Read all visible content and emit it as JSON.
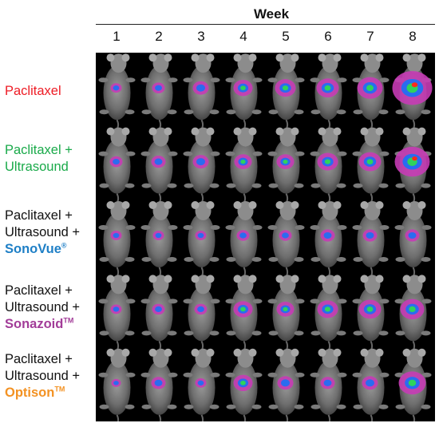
{
  "header": {
    "title": "Week",
    "weeks": [
      "1",
      "2",
      "3",
      "4",
      "5",
      "6",
      "7",
      "8"
    ]
  },
  "rows": [
    {
      "lines": [
        "Paclitaxel"
      ],
      "color": "#ee1c25",
      "accent": "",
      "mark": ""
    },
    {
      "lines": [
        "Paclitaxel +",
        "Ultrasound"
      ],
      "color": "#1aaa4a",
      "accent": "",
      "mark": ""
    },
    {
      "lines": [
        "Paclitaxel +",
        "Ultrasound +"
      ],
      "color": "#111111",
      "accent": "SonoVue",
      "mark": "®",
      "accent_color": "#1e7fc6"
    },
    {
      "lines": [
        "Paclitaxel +",
        "Ultrasound +"
      ],
      "color": "#111111",
      "accent": "Sonazoid",
      "mark": "TM",
      "accent_color": "#a23c98"
    },
    {
      "lines": [
        "Paclitaxel +",
        "Ultrasound +"
      ],
      "color": "#111111",
      "accent": "Optison",
      "mark": "TM",
      "accent_color": "#f39223"
    }
  ],
  "signal_levels": [
    [
      0.1,
      0.15,
      0.25,
      0.35,
      0.4,
      0.45,
      0.55,
      1.0
    ],
    [
      0.15,
      0.2,
      0.25,
      0.3,
      0.3,
      0.4,
      0.45,
      0.85
    ],
    [
      0.1,
      0.1,
      0.1,
      0.15,
      0.15,
      0.2,
      0.2,
      0.2
    ],
    [
      0.1,
      0.15,
      0.15,
      0.35,
      0.3,
      0.4,
      0.45,
      0.5
    ],
    [
      0.05,
      0.2,
      0.1,
      0.35,
      0.25,
      0.2,
      0.25,
      0.6
    ]
  ],
  "colors": {
    "signal_low": "#c63bb5",
    "signal_mid": "#2a6cf0",
    "signal_high": "#2fd35a",
    "signal_peak": "#ff2a1a"
  }
}
